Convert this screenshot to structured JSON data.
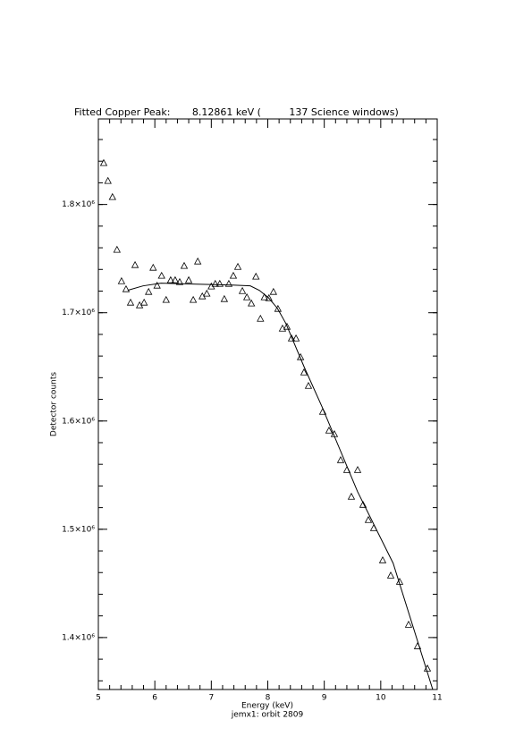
{
  "chart_data": {
    "type": "scatter",
    "title": "Fitted Copper Peak:       8.12861 keV (         137 Science windows)",
    "x_label": "Energy (keV)",
    "subtitle": "jemx1: orbit 2809",
    "y_label": "Detector counts",
    "xlim": [
      5,
      11
    ],
    "xticks": [
      5,
      6,
      7,
      8,
      9,
      10,
      11
    ],
    "ylim": [
      1352000,
      1879000
    ],
    "yticks": [
      {
        "value": 1400000,
        "label": "1.4×10⁶"
      },
      {
        "value": 1500000,
        "label": "1.5×10⁶"
      },
      {
        "value": 1600000,
        "label": "1.6×10⁶"
      },
      {
        "value": 1700000,
        "label": "1.7×10⁶"
      },
      {
        "value": 1800000,
        "label": "1.8×10⁶"
      }
    ],
    "grid": false,
    "series": [
      {
        "marker": "triangle",
        "color": "#000000",
        "x": [
          5.095,
          5.17,
          5.25,
          5.33,
          5.41,
          5.49,
          5.57,
          5.65,
          5.73,
          5.81,
          5.89,
          5.97,
          6.04,
          6.12,
          6.2,
          6.28,
          6.36,
          6.44,
          6.52,
          6.6,
          6.68,
          6.76,
          6.84,
          6.92,
          7.0,
          7.07,
          7.15,
          7.23,
          7.31,
          7.39,
          7.47,
          7.55,
          7.63,
          7.71,
          7.79,
          7.87,
          7.94,
          8.02,
          8.1,
          8.18,
          8.26,
          8.34,
          8.42,
          8.5,
          8.58,
          8.641,
          8.72,
          8.973,
          9.084,
          9.179,
          9.29,
          9.401,
          9.48,
          9.591,
          9.686,
          9.781,
          9.876,
          10.034,
          10.177,
          10.335,
          10.493,
          10.651,
          10.826
        ],
        "values": [
          1838000,
          1821500,
          1806600,
          1757900,
          1728900,
          1721500,
          1709100,
          1743800,
          1706600,
          1709100,
          1719000,
          1741300,
          1724800,
          1733900,
          1711600,
          1729800,
          1729800,
          1728100,
          1743000,
          1729800,
          1711600,
          1747100,
          1714900,
          1717400,
          1724000,
          1726400,
          1726400,
          1712400,
          1726400,
          1733900,
          1742100,
          1719800,
          1714000,
          1708300,
          1733100,
          1694200,
          1714000,
          1713200,
          1719000,
          1703300,
          1685100,
          1686800,
          1676000,
          1676000,
          1658700,
          1644600,
          1632200,
          1608300,
          1590900,
          1587600,
          1563600,
          1554500,
          1529800,
          1554500,
          1522300,
          1508300,
          1500800,
          1471100,
          1457000,
          1451200,
          1411600,
          1391700,
          1371100
        ]
      },
      {
        "marker": "line",
        "color": "#000000",
        "x": [
          5.52,
          5.79,
          6.11,
          6.74,
          7.37,
          7.69,
          7.85,
          8.01,
          8.17,
          8.32,
          8.64,
          8.96,
          9.59,
          10.22,
          10.92
        ],
        "values": [
          1720700,
          1724800,
          1727300,
          1726400,
          1725600,
          1724800,
          1720700,
          1714000,
          1704100,
          1690100,
          1650400,
          1613200,
          1534700,
          1468600,
          1352100
        ]
      }
    ]
  }
}
